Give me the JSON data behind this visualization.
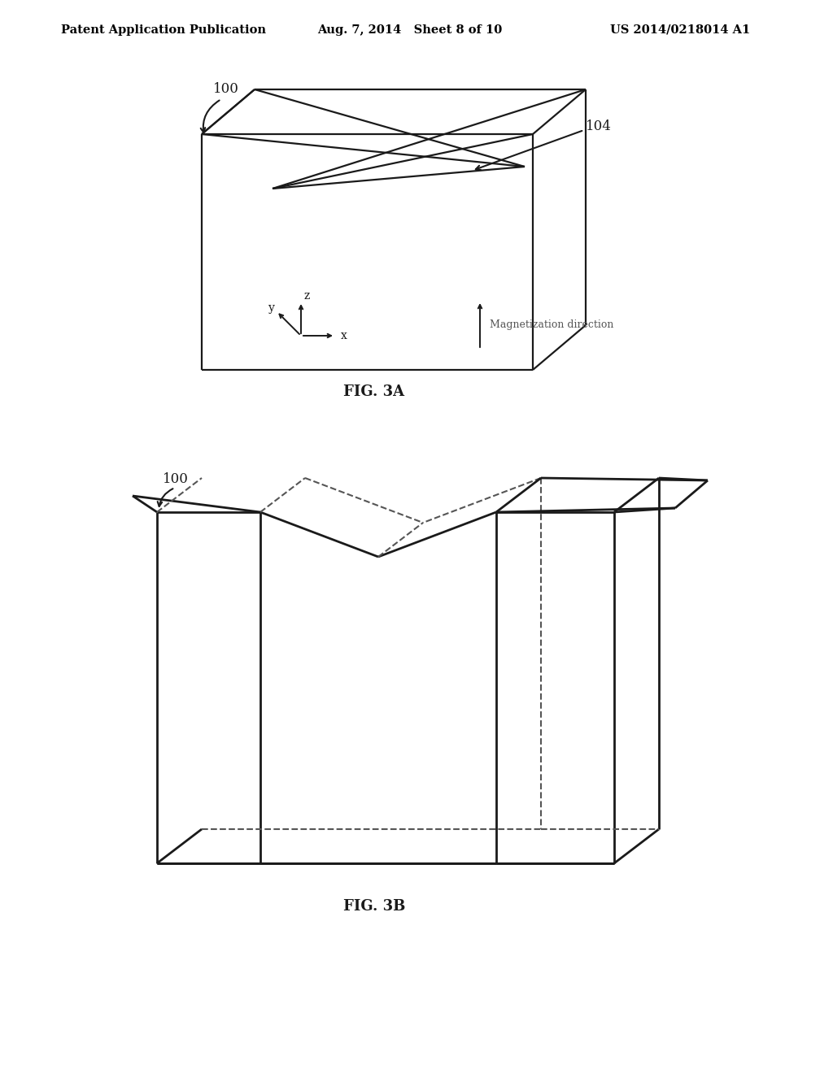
{
  "bg_color": "#ffffff",
  "text_color": "#000000",
  "header_left": "Patent Application Publication",
  "header_center": "Aug. 7, 2014   Sheet 8 of 10",
  "header_right": "US 2014/0218014 A1",
  "fig3a_label": "FIG. 3A",
  "fig3b_label": "FIG. 3B",
  "label_100_top": "100",
  "label_104": "104",
  "label_100_bot": "100",
  "magnetization_text": "Magnetization direction"
}
